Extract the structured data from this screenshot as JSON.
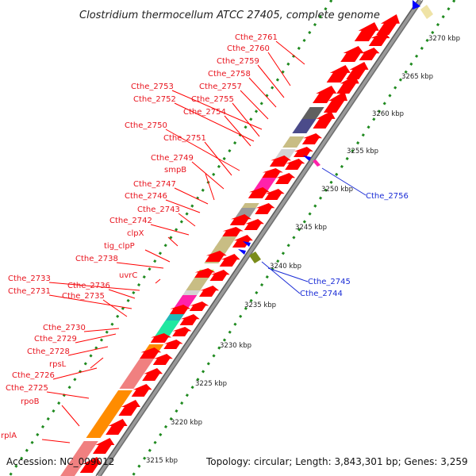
{
  "title": "Clostridium thermocellum ATCC 27405, complete genome",
  "footer": {
    "accession": "Accession: NC_009012",
    "summary": "Topology: circular; Length: 3,843,301 bp; Genes: 3,259"
  },
  "scale_ticks": [
    "3215 kbp",
    "3220 kbp",
    "3225 kbp",
    "3230 kbp",
    "3235 kbp",
    "3240 kbp",
    "3245 kbp",
    "3250 kbp",
    "3255 kbp",
    "3260 kbp",
    "3265 kbp",
    "3270 kbp"
  ],
  "colors": {
    "forward_arrow": "#ff0000",
    "reverse_arrow": "#0000ff",
    "backbone": "#999999",
    "scale_dots": "#1f8a1f",
    "forward_label": "#e8141e",
    "reverse_label": "#1a2cd6"
  },
  "forward_labels": [
    "Cthe_2761",
    "Cthe_2760",
    "Cthe_2759",
    "Cthe_2758",
    "Cthe_2757",
    "Cthe_2753",
    "Cthe_2755",
    "Cthe_2752",
    "Cthe_2754",
    "Cthe_2750",
    "Cthe_2751",
    "Cthe_2749",
    "smpB",
    "Cthe_2747",
    "Cthe_2746",
    "Cthe_2743",
    "Cthe_2742",
    "clpX",
    "tig_clpP",
    "Cthe_2738",
    "uvrC",
    "Cthe_2733",
    "Cthe_2736",
    "Cthe_2731",
    "Cthe_2735",
    "Cthe_2730",
    "Cthe_2729",
    "Cthe_2728",
    "rpsL",
    "Cthe_2726",
    "Cthe_2725",
    "rpoB",
    "rplA"
  ],
  "reverse_labels": [
    "Cthe_2756",
    "Cthe_2745",
    "Cthe_2744"
  ]
}
